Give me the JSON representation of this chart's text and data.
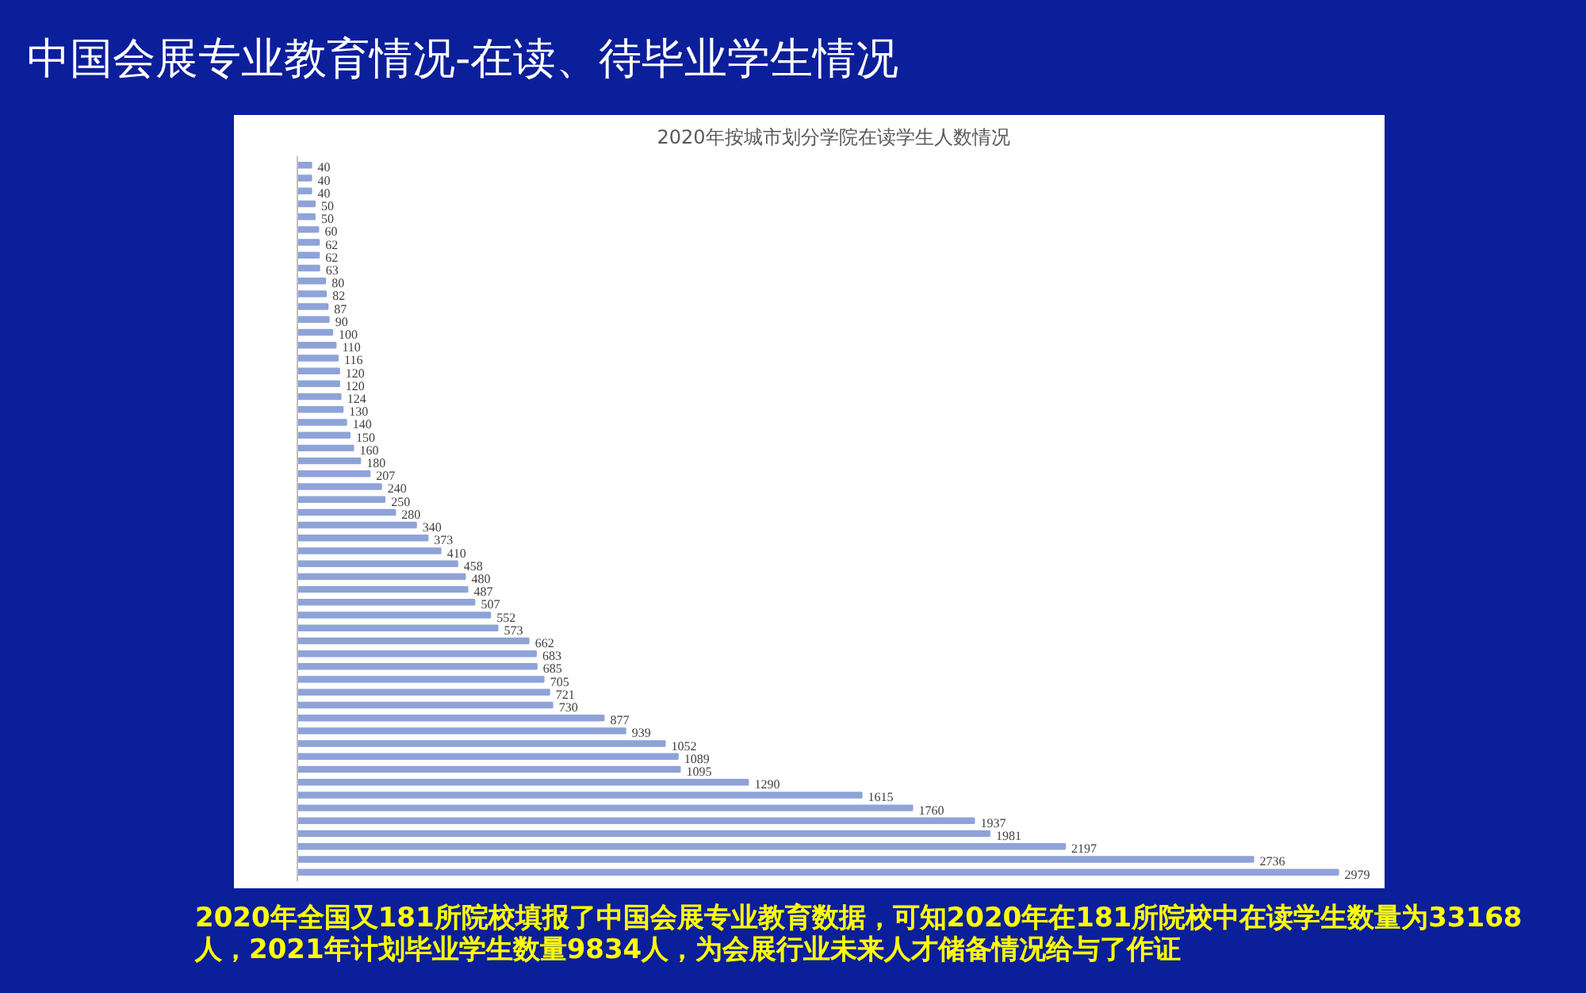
{
  "chart_data": {
    "type": "bar",
    "orientation": "horizontal",
    "title": "2020年按城市划分学院在读学生人数情况",
    "subtitle": "中国会展专业教育情况-在读、待毕业学生情况",
    "annotations": [
      "2020年全国又181所院校填报了中国会展专业教育数据，可知2020年在181所院校中在读学生数量为33168人，2021年计划毕业学生数量9834人，为会展行业未来人才储备情况给与了作证"
    ],
    "categories": [
      null,
      null,
      null,
      null,
      null,
      null,
      null,
      null,
      null,
      null,
      null,
      null,
      null,
      null,
      null,
      null,
      null,
      null,
      null,
      null,
      null,
      null,
      null,
      null,
      null,
      null,
      null,
      null,
      null,
      null,
      null,
      null,
      null,
      null,
      null,
      null,
      null,
      null,
      null,
      null,
      null,
      null,
      null,
      null,
      null,
      null,
      null,
      null,
      null,
      null,
      null,
      null,
      null,
      null,
      null,
      null
    ],
    "values": [
      40,
      40,
      40,
      50,
      50,
      60,
      62,
      62,
      63,
      80,
      82,
      87,
      90,
      100,
      110,
      116,
      120,
      120,
      124,
      130,
      140,
      150,
      160,
      180,
      207,
      240,
      250,
      280,
      340,
      373,
      410,
      458,
      480,
      487,
      507,
      552,
      573,
      662,
      683,
      685,
      705,
      721,
      730,
      877,
      939,
      1052,
      1089,
      1095,
      1290,
      1615,
      1760,
      1937,
      1981,
      2197,
      2736,
      2979
    ],
    "color": "#8fa3d9",
    "data_labels": true
  }
}
